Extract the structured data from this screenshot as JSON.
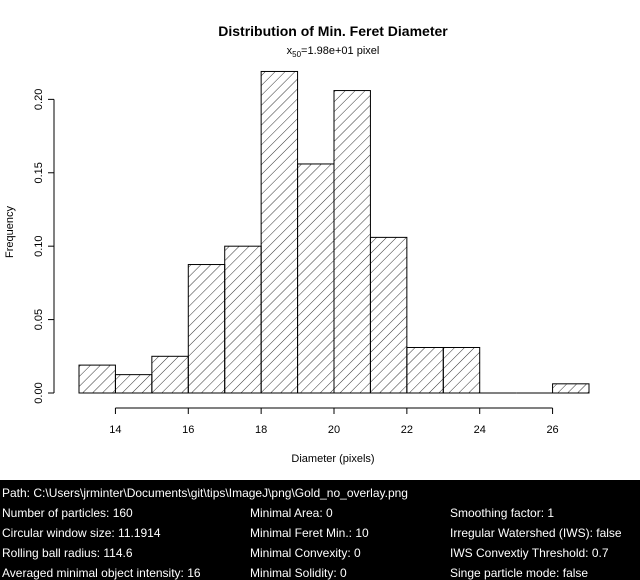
{
  "chart_data": {
    "type": "bar",
    "title": "Distribution of Min. Feret Diameter",
    "subtitle_main": "x",
    "subtitle_sub": "50",
    "subtitle_rest": "=1.98e+01 pixel",
    "xlabel": "Diameter (pixels)",
    "ylabel": "Frequency",
    "xlim": [
      13,
      27
    ],
    "ylim": [
      0,
      0.22
    ],
    "x_ticks": [
      14,
      16,
      18,
      20,
      22,
      24,
      26
    ],
    "y_ticks": [
      0.0,
      0.05,
      0.1,
      0.15,
      0.2
    ],
    "y_tick_labels": [
      "0.00",
      "0.05",
      "0.10",
      "0.15",
      "0.20"
    ],
    "fill": "diagonal-hatch",
    "grid": false,
    "bins": [
      {
        "x0": 13,
        "x1": 14,
        "value": 0.019
      },
      {
        "x0": 14,
        "x1": 15,
        "value": 0.0125
      },
      {
        "x0": 15,
        "x1": 16,
        "value": 0.025
      },
      {
        "x0": 16,
        "x1": 17,
        "value": 0.0875
      },
      {
        "x0": 17,
        "x1": 18,
        "value": 0.1
      },
      {
        "x0": 18,
        "x1": 19,
        "value": 0.219
      },
      {
        "x0": 19,
        "x1": 20,
        "value": 0.156
      },
      {
        "x0": 20,
        "x1": 21,
        "value": 0.206
      },
      {
        "x0": 21,
        "x1": 22,
        "value": 0.106
      },
      {
        "x0": 22,
        "x1": 23,
        "value": 0.031
      },
      {
        "x0": 23,
        "x1": 24,
        "value": 0.031
      },
      {
        "x0": 24,
        "x1": 25,
        "value": 0
      },
      {
        "x0": 25,
        "x1": 26,
        "value": 0
      },
      {
        "x0": 26,
        "x1": 27,
        "value": 0.00625
      }
    ]
  },
  "info": {
    "path": "Path: C:\\Users\\jrminter\\Documents\\git\\tips\\ImageJ\\png\\Gold_no_overlay.png",
    "col1": [
      "Number of particles: 160",
      "Circular window size: 11.1914",
      "Rolling ball radius: 114.6",
      "Averaged minimal object intensity: 16"
    ],
    "col2": [
      "Minimal Area: 0",
      "Minimal Feret Min.: 10",
      "Minimal Convexity: 0",
      "Minimal Solidity: 0"
    ],
    "col3": [
      "Smoothing factor: 1",
      "Irregular Watershed (IWS): false",
      "IWS Convextiy Threshold: 0.7",
      "Singe particle mode: false"
    ]
  }
}
